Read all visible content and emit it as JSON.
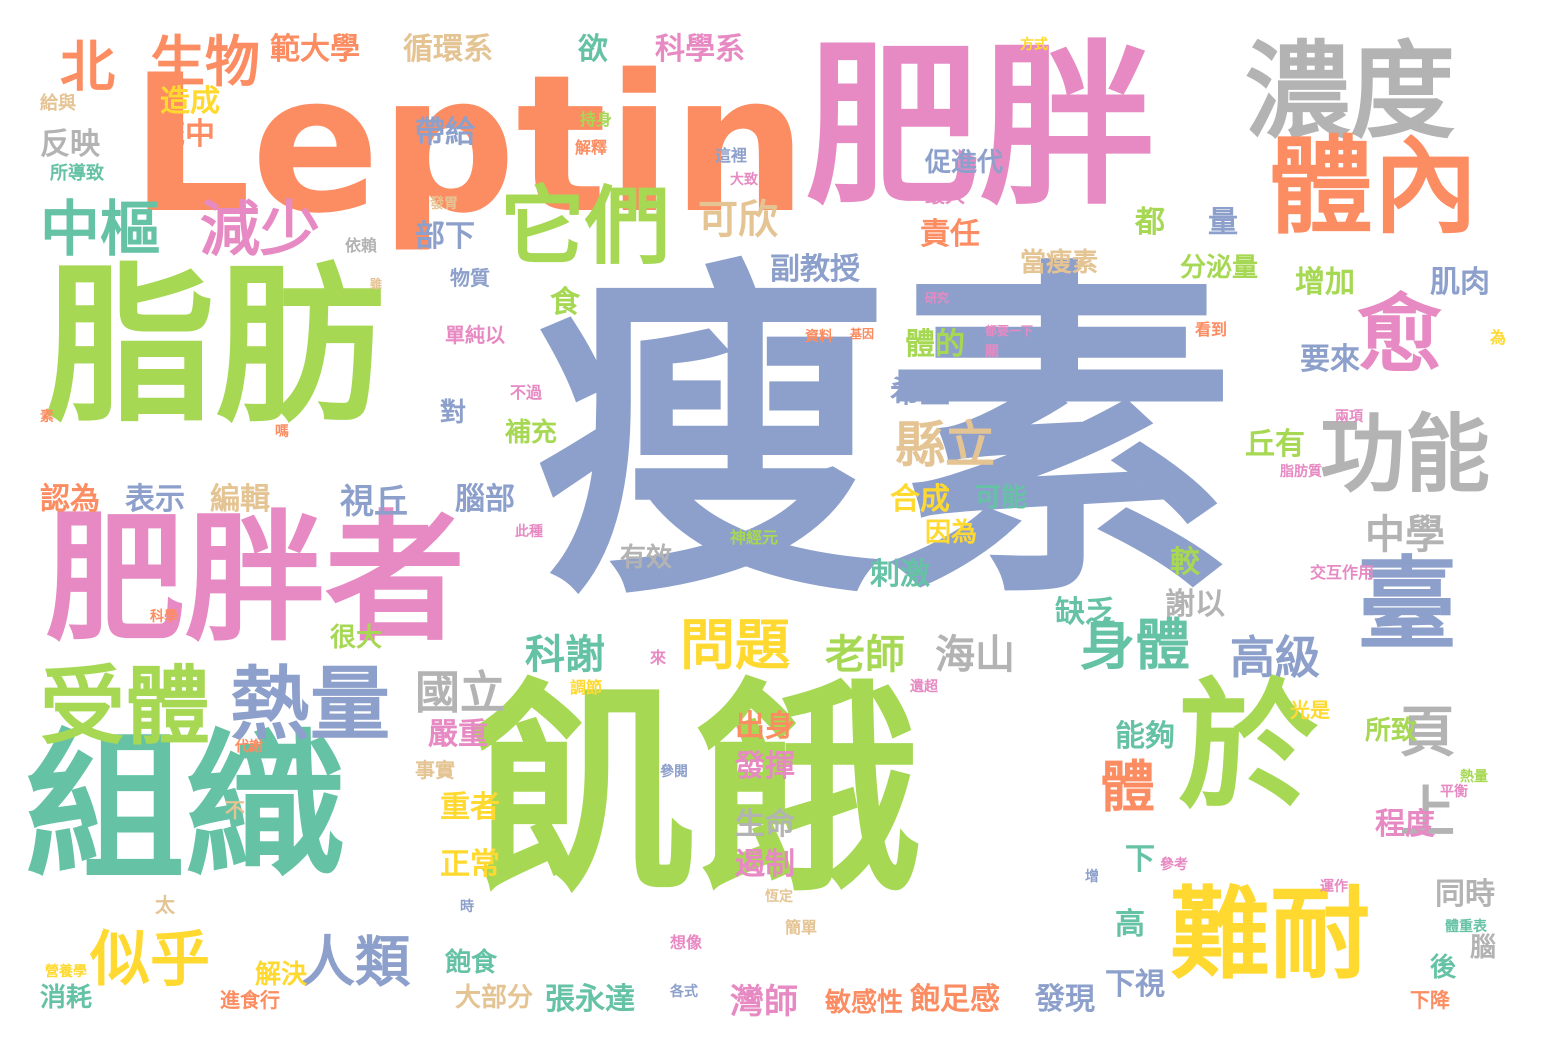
{
  "palette": {
    "blue": "#8da0cb",
    "green": "#a6d854",
    "orange": "#fc8d62",
    "pink": "#e78ac3",
    "grey": "#b3b3b3",
    "teal": "#66c2a5",
    "yellow": "#ffd92f",
    "tan": "#e5c494"
  },
  "words": [
    {
      "text": "瘦素",
      "color": "blue"
    },
    {
      "text": "飢餓",
      "color": "green"
    },
    {
      "text": "Leptin",
      "color": "orange"
    },
    {
      "text": "肥胖",
      "color": "pink"
    },
    {
      "text": "脂肪",
      "color": "green"
    },
    {
      "text": "組織",
      "color": "teal"
    },
    {
      "text": "肥胖者",
      "color": "pink"
    },
    {
      "text": "於",
      "color": "green"
    },
    {
      "text": "濃度",
      "color": "grey"
    },
    {
      "text": "體內",
      "color": "orange"
    },
    {
      "text": "難耐",
      "color": "yellow"
    },
    {
      "text": "臺",
      "color": "blue"
    },
    {
      "text": "它們",
      "color": "green"
    },
    {
      "text": "愈",
      "color": "pink"
    },
    {
      "text": "功能",
      "color": "grey"
    },
    {
      "text": "受體",
      "color": "green"
    },
    {
      "text": "熱量",
      "color": "blue"
    },
    {
      "text": "中樞",
      "color": "teal"
    },
    {
      "text": "減少",
      "color": "pink"
    },
    {
      "text": "生物",
      "color": "orange"
    },
    {
      "text": "北",
      "color": "orange"
    },
    {
      "text": "似乎",
      "color": "yellow"
    },
    {
      "text": "人類",
      "color": "blue"
    },
    {
      "text": "身體",
      "color": "teal"
    },
    {
      "text": "問題",
      "color": "yellow"
    },
    {
      "text": "頁",
      "color": "grey"
    },
    {
      "text": "上",
      "color": "grey"
    },
    {
      "text": "體",
      "color": "orange"
    },
    {
      "text": "範大學",
      "color": "orange"
    },
    {
      "text": "循環系",
      "color": "tan"
    },
    {
      "text": "科學系",
      "color": "pink"
    },
    {
      "text": "欲",
      "color": "teal"
    },
    {
      "text": "造成",
      "color": "yellow"
    },
    {
      "text": "統中",
      "color": "orange"
    },
    {
      "text": "反映",
      "color": "grey"
    },
    {
      "text": "給與",
      "color": "tan"
    },
    {
      "text": "所導致",
      "color": "teal"
    },
    {
      "text": "帶給",
      "color": "blue"
    },
    {
      "text": "可欣",
      "color": "tan"
    },
    {
      "text": "部下",
      "color": "blue"
    },
    {
      "text": "促進代",
      "color": "blue"
    },
    {
      "text": "最大",
      "color": "pink"
    },
    {
      "text": "責任",
      "color": "orange"
    },
    {
      "text": "當瘦素",
      "color": "tan"
    },
    {
      "text": "都",
      "color": "green"
    },
    {
      "text": "量",
      "color": "blue"
    },
    {
      "text": "副教授",
      "color": "blue"
    },
    {
      "text": "分泌量",
      "color": "green"
    },
    {
      "text": "增加",
      "color": "green"
    },
    {
      "text": "肌肉",
      "color": "blue"
    },
    {
      "text": "物質",
      "color": "blue"
    },
    {
      "text": "食",
      "color": "green"
    },
    {
      "text": "單純以",
      "color": "pink"
    },
    {
      "text": "體的",
      "color": "green"
    },
    {
      "text": "希望",
      "color": "blue"
    },
    {
      "text": "要來",
      "color": "blue"
    },
    {
      "text": "縣立",
      "color": "tan"
    },
    {
      "text": "中學",
      "color": "grey"
    },
    {
      "text": "丘有",
      "color": "green"
    },
    {
      "text": "補充",
      "color": "green"
    },
    {
      "text": "對",
      "color": "blue"
    },
    {
      "text": "認為",
      "color": "orange"
    },
    {
      "text": "表示",
      "color": "blue"
    },
    {
      "text": "編輯",
      "color": "tan"
    },
    {
      "text": "視丘",
      "color": "blue"
    },
    {
      "text": "腦部",
      "color": "blue"
    },
    {
      "text": "合成",
      "color": "yellow"
    },
    {
      "text": "可能",
      "color": "teal"
    },
    {
      "text": "因為",
      "color": "yellow"
    },
    {
      "text": "有效",
      "color": "grey"
    },
    {
      "text": "刺激",
      "color": "teal"
    },
    {
      "text": "較",
      "color": "green"
    },
    {
      "text": "謝以",
      "color": "grey"
    },
    {
      "text": "缺乏",
      "color": "teal"
    },
    {
      "text": "科謝",
      "color": "teal"
    },
    {
      "text": "老師",
      "color": "green"
    },
    {
      "text": "海山",
      "color": "grey"
    },
    {
      "text": "高級",
      "color": "blue"
    },
    {
      "text": "很大",
      "color": "green"
    },
    {
      "text": "國立",
      "color": "grey"
    },
    {
      "text": "嚴重",
      "color": "pink"
    },
    {
      "text": "出身",
      "color": "orange"
    },
    {
      "text": "能夠",
      "color": "teal"
    },
    {
      "text": "所致",
      "color": "green"
    },
    {
      "text": "發揮",
      "color": "pink"
    },
    {
      "text": "光是",
      "color": "yellow"
    },
    {
      "text": "事實",
      "color": "tan"
    },
    {
      "text": "重者",
      "color": "yellow"
    },
    {
      "text": "不",
      "color": "tan"
    },
    {
      "text": "生命",
      "color": "grey"
    },
    {
      "text": "程度",
      "color": "pink"
    },
    {
      "text": "遏制",
      "color": "pink"
    },
    {
      "text": "下",
      "color": "teal"
    },
    {
      "text": "正常",
      "color": "yellow"
    },
    {
      "text": "同時",
      "color": "grey"
    },
    {
      "text": "高",
      "color": "teal"
    },
    {
      "text": "太",
      "color": "tan"
    },
    {
      "text": "解決",
      "color": "yellow"
    },
    {
      "text": "飽食",
      "color": "teal"
    },
    {
      "text": "消耗",
      "color": "teal"
    },
    {
      "text": "進食行",
      "color": "orange"
    },
    {
      "text": "大部分",
      "color": "tan"
    },
    {
      "text": "張永達",
      "color": "teal"
    },
    {
      "text": "灣師",
      "color": "pink"
    },
    {
      "text": "敏感性",
      "color": "orange"
    },
    {
      "text": "飽足感",
      "color": "orange"
    },
    {
      "text": "發現",
      "color": "blue"
    },
    {
      "text": "下視",
      "color": "blue"
    },
    {
      "text": "後",
      "color": "teal"
    },
    {
      "text": "腦",
      "color": "grey"
    },
    {
      "text": "下降",
      "color": "orange"
    },
    {
      "text": "方式",
      "color": "yellow"
    },
    {
      "text": "持身",
      "color": "green"
    },
    {
      "text": "解釋",
      "color": "orange"
    },
    {
      "text": "這裡",
      "color": "blue"
    },
    {
      "text": "大致",
      "color": "pink"
    },
    {
      "text": "發胃",
      "color": "tan"
    },
    {
      "text": "依賴",
      "color": "grey"
    },
    {
      "text": "雖",
      "color": "tan"
    },
    {
      "text": "研究",
      "color": "pink"
    },
    {
      "text": "都要一下",
      "color": "pink"
    },
    {
      "text": "資料",
      "color": "orange"
    },
    {
      "text": "基因",
      "color": "orange"
    },
    {
      "text": "看到",
      "color": "orange"
    },
    {
      "text": "為",
      "color": "yellow"
    },
    {
      "text": "關",
      "color": "pink"
    },
    {
      "text": "不過",
      "color": "pink"
    },
    {
      "text": "素",
      "color": "orange"
    },
    {
      "text": "嗎",
      "color": "orange"
    },
    {
      "text": "兩項",
      "color": "pink"
    },
    {
      "text": "脂肪質",
      "color": "pink"
    },
    {
      "text": "此種",
      "color": "pink"
    },
    {
      "text": "神經元",
      "color": "green"
    },
    {
      "text": "交互作用",
      "color": "pink"
    },
    {
      "text": "科學",
      "color": "orange"
    },
    {
      "text": "來",
      "color": "pink"
    },
    {
      "text": "調節",
      "color": "yellow"
    },
    {
      "text": "遺超",
      "color": "pink"
    },
    {
      "text": "代謝",
      "color": "orange"
    },
    {
      "text": "參閱",
      "color": "blue"
    },
    {
      "text": "平衡",
      "color": "pink"
    },
    {
      "text": "熱量",
      "color": "green"
    },
    {
      "text": "參考",
      "color": "pink"
    },
    {
      "text": "增",
      "color": "blue"
    },
    {
      "text": "運作",
      "color": "pink"
    },
    {
      "text": "恆定",
      "color": "tan"
    },
    {
      "text": "簡單",
      "color": "tan"
    },
    {
      "text": "時",
      "color": "blue"
    },
    {
      "text": "想像",
      "color": "pink"
    },
    {
      "text": "體重表",
      "color": "teal"
    },
    {
      "text": "營養學",
      "color": "yellow"
    },
    {
      "text": "各式",
      "color": "blue"
    }
  ]
}
